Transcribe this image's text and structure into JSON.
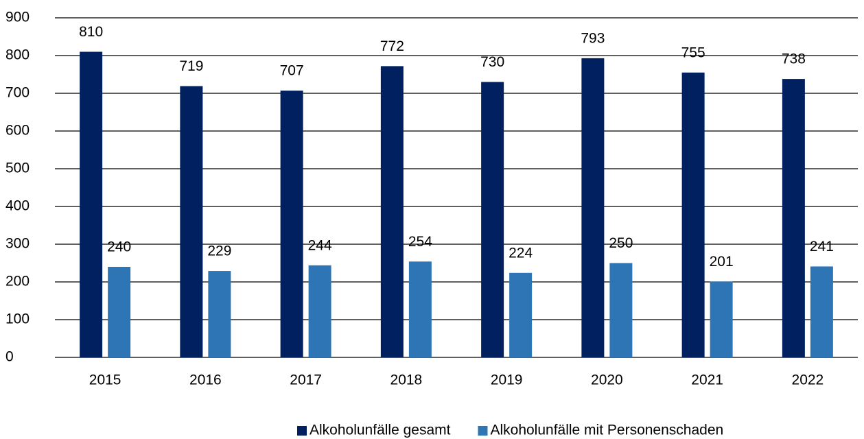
{
  "chart_data": {
    "type": "bar",
    "categories": [
      "2015",
      "2016",
      "2017",
      "2018",
      "2019",
      "2020",
      "2021",
      "2022"
    ],
    "series": [
      {
        "name": "Alkoholunfälle gesamt",
        "color": "#002060",
        "values": [
          810,
          719,
          707,
          772,
          730,
          793,
          755,
          738
        ]
      },
      {
        "name": "Alkoholunfälle mit Personenschaden",
        "color": "#2e75b6",
        "values": [
          240,
          229,
          244,
          254,
          224,
          250,
          201,
          241
        ]
      }
    ],
    "ylim": [
      0,
      900
    ],
    "yticks": [
      0,
      100,
      200,
      300,
      400,
      500,
      600,
      700,
      800,
      900
    ],
    "grid": true,
    "legend": "bottom"
  }
}
